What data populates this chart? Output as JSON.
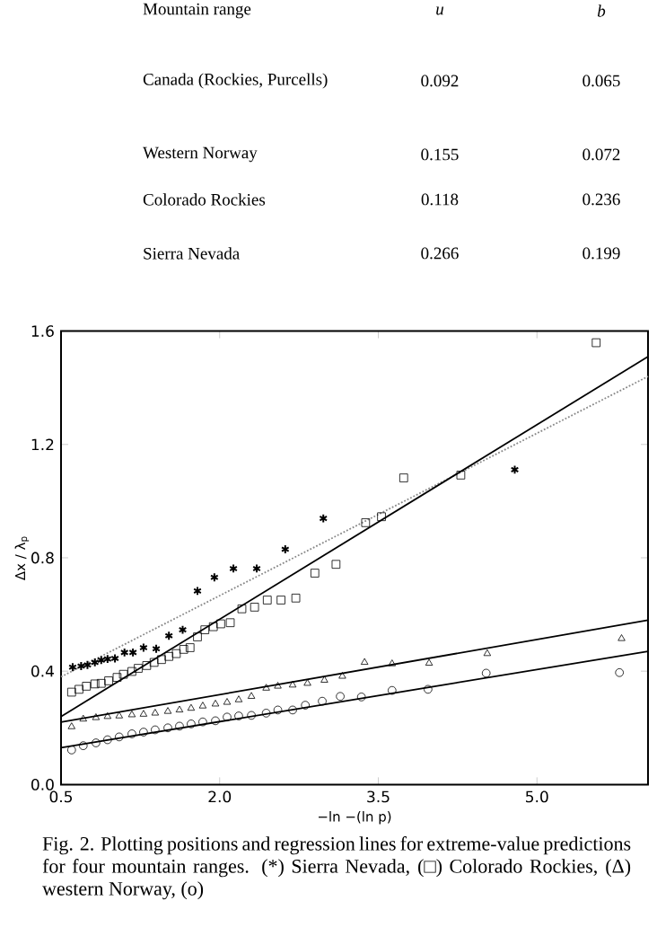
{
  "chart_data": [
    {
      "type": "other",
      "annotations": [
        "Mountain range"
      ],
      "categories": [
        "Canada (Rockies, Purcells)",
        "Western Norway",
        "Colorado Rockies",
        "Sierra Nevada"
      ],
      "series": [
        {
          "name": "u",
          "values": [
            0.092,
            0.155,
            0.118,
            0.266
          ]
        },
        {
          "name": "b",
          "values": [
            0.065,
            0.072,
            0.236,
            0.199
          ]
        }
      ],
      "data_labels": true
    },
    {
      "type": "scatter",
      "xlabel": "−ln −(ln p)",
      "ylabel": "Δx / λ$_{p}$",
      "xlim": [
        0.5,
        6.05
      ],
      "ylim": [
        0,
        1.6
      ],
      "xticks": [
        {
          "value": 0.5,
          "label": "0.5"
        },
        {
          "value": 2,
          "label": "2.0"
        },
        {
          "value": 3.5,
          "label": "3.5"
        },
        {
          "value": 5,
          "label": "5.0"
        }
      ],
      "yticks": [
        {
          "value": 0,
          "label": "0.0"
        },
        {
          "value": 0.4,
          "label": "0.4"
        },
        {
          "value": 0.8,
          "label": "0.8"
        },
        {
          "value": 1.2,
          "label": "1.2"
        },
        {
          "value": 1.6,
          "label": "1.6"
        }
      ],
      "series": [
        {
          "type": "scatter",
          "marker": "cross",
          "color": "#000000",
          "x": [
            0.61,
            0.69,
            0.75,
            0.82,
            0.88,
            0.94,
            1.01,
            1.1,
            1.18,
            1.28,
            1.4,
            1.52,
            1.65,
            1.79,
            1.95,
            2.13,
            2.35,
            2.62,
            2.98,
            4.79
          ],
          "values": [
            0.414,
            0.418,
            0.422,
            0.431,
            0.439,
            0.443,
            0.445,
            0.466,
            0.466,
            0.483,
            0.479,
            0.525,
            0.546,
            0.683,
            0.731,
            0.762,
            0.762,
            0.83,
            0.939,
            1.111
          ]
        },
        {
          "type": "scatter",
          "marker": "square",
          "color": "#000000",
          "x": [
            0.6,
            0.67,
            0.74,
            0.82,
            0.88,
            0.95,
            1.03,
            1.09,
            1.17,
            1.23,
            1.31,
            1.38,
            1.45,
            1.52,
            1.59,
            1.66,
            1.72,
            1.79,
            1.86,
            1.94,
            2.01,
            2.1,
            2.21,
            2.33,
            2.45,
            2.58,
            2.72,
            2.9,
            3.1,
            3.38,
            3.53,
            3.74,
            4.28,
            5.56
          ],
          "values": [
            0.326,
            0.336,
            0.347,
            0.355,
            0.357,
            0.366,
            0.378,
            0.389,
            0.399,
            0.41,
            0.42,
            0.431,
            0.441,
            0.452,
            0.462,
            0.477,
            0.483,
            0.521,
            0.546,
            0.557,
            0.567,
            0.571,
            0.62,
            0.626,
            0.651,
            0.651,
            0.658,
            0.746,
            0.777,
            0.924,
            0.945,
            1.082,
            1.092,
            1.559
          ]
        },
        {
          "type": "scatter",
          "marker": "triangle",
          "color": "#000000",
          "x": [
            0.6,
            0.71,
            0.83,
            0.94,
            1.05,
            1.17,
            1.28,
            1.39,
            1.51,
            1.62,
            1.73,
            1.84,
            1.96,
            2.07,
            2.18,
            2.3,
            2.44,
            2.55,
            2.69,
            2.83,
            2.99,
            3.16,
            3.37,
            3.63,
            3.98,
            4.53,
            5.8
          ],
          "values": [
            0.204,
            0.231,
            0.236,
            0.24,
            0.242,
            0.246,
            0.248,
            0.252,
            0.258,
            0.263,
            0.269,
            0.277,
            0.284,
            0.29,
            0.299,
            0.311,
            0.34,
            0.347,
            0.351,
            0.357,
            0.368,
            0.382,
            0.431,
            0.426,
            0.428,
            0.462,
            0.515
          ]
        },
        {
          "type": "scatter",
          "marker": "circle",
          "color": "#000000",
          "x": [
            0.6,
            0.71,
            0.83,
            0.94,
            1.05,
            1.17,
            1.28,
            1.39,
            1.51,
            1.62,
            1.73,
            1.84,
            1.96,
            2.07,
            2.18,
            2.3,
            2.44,
            2.55,
            2.69,
            2.81,
            2.97,
            3.14,
            3.34,
            3.63,
            3.97,
            4.52,
            5.78
          ],
          "values": [
            0.122,
            0.137,
            0.147,
            0.158,
            0.168,
            0.179,
            0.185,
            0.193,
            0.2,
            0.206,
            0.214,
            0.221,
            0.225,
            0.238,
            0.242,
            0.244,
            0.252,
            0.263,
            0.263,
            0.28,
            0.294,
            0.311,
            0.309,
            0.332,
            0.336,
            0.393,
            0.395
          ]
        },
        {
          "type": "line",
          "marker": "none",
          "line_style": "dotted",
          "color": "#888888",
          "x": [
            0.5,
            6.05
          ],
          "values": [
            0.38,
            1.44
          ]
        },
        {
          "type": "line",
          "marker": "none",
          "line_style": "solid",
          "color": "#000000",
          "x": [
            0.5,
            6.05
          ],
          "values": [
            0.24,
            1.51
          ]
        },
        {
          "type": "line",
          "marker": "none",
          "line_style": "solid",
          "color": "#000000",
          "x": [
            0.5,
            6.05
          ],
          "values": [
            0.22,
            0.58
          ]
        },
        {
          "type": "line",
          "marker": "none",
          "line_style": "solid",
          "color": "#000000",
          "x": [
            0.5,
            6.05
          ],
          "values": [
            0.13,
            0.47
          ]
        }
      ],
      "annotations": [
        "Fig. 2. Plotting positions and regression lines for extreme-value predictions for four mountain ranges. (*) Sierra Nevada, (□) Colorado Rockies, (Δ) western Norway, (o)"
      ]
    }
  ]
}
